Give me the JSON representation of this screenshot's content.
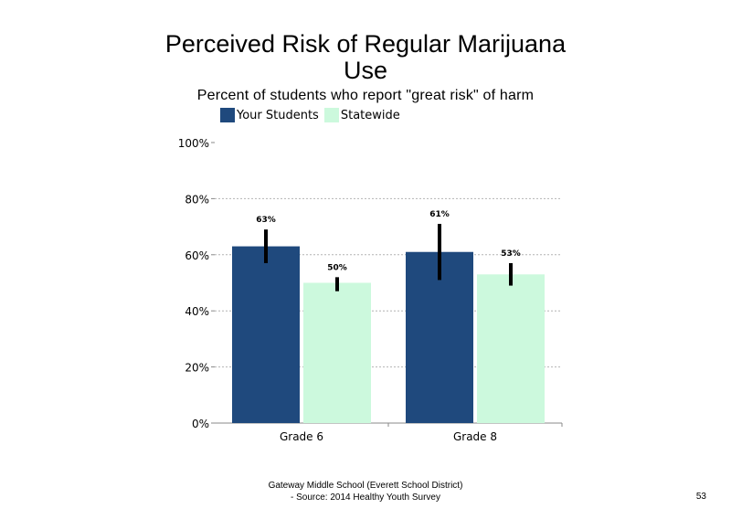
{
  "slide": {
    "title_line1": "Perceived Risk of Regular Marijuana",
    "title_line2": "Use",
    "subtitle": "Percent of students who report \"great risk\" of harm",
    "footer_line1": "Gateway Middle School (Everett School District)",
    "footer_line2": "- Source: 2014 Healthy Youth Survey",
    "page_number": "53"
  },
  "chart_data": {
    "type": "bar",
    "categories": [
      "Grade 6",
      "Grade 8"
    ],
    "series": [
      {
        "name": "Your Students",
        "color": "#1f497d",
        "values": [
          63,
          61
        ],
        "value_labels": [
          "63%",
          "61%"
        ],
        "error_low": [
          57,
          51
        ],
        "error_high": [
          69,
          71
        ]
      },
      {
        "name": "Statewide",
        "color": "#ccf9dd",
        "values": [
          50,
          53
        ],
        "value_labels": [
          "50%",
          "53%"
        ],
        "error_low": [
          47,
          49
        ],
        "error_high": [
          52,
          57
        ]
      }
    ],
    "ylim": [
      0,
      100
    ],
    "y_ticks": [
      0,
      20,
      40,
      60,
      80,
      100
    ],
    "y_tick_labels": [
      "0%",
      "20%",
      "40%",
      "60%",
      "80%",
      "100%"
    ],
    "grid": "dashed horizontal",
    "legend": "top-left",
    "error_bar_color": "#000000"
  }
}
